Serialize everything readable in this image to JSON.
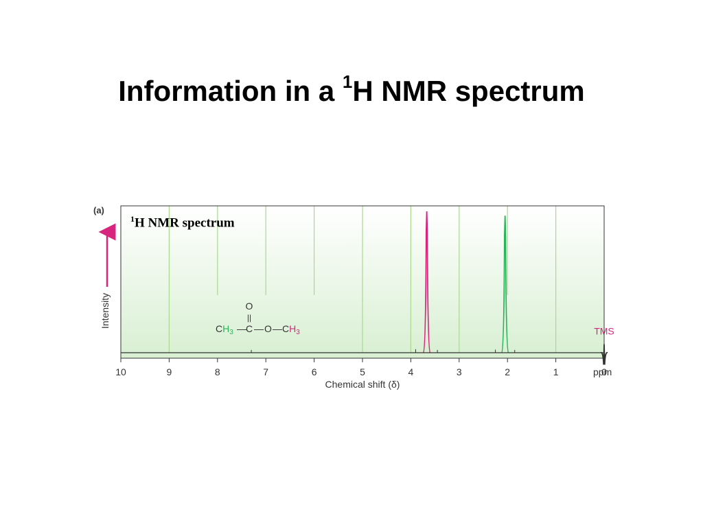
{
  "slide": {
    "title_prefix": "Information in a ",
    "title_sup": "1",
    "title_suffix": "H NMR spectrum"
  },
  "figure": {
    "panel_label": "(a)",
    "inset_sup": "1",
    "inset_text": "H NMR spectrum",
    "molecule": {
      "o_top": "O",
      "double_bond": "||",
      "ch3_left_c": "C",
      "ch3_left_h": "H",
      "ch3_left_sub": "3",
      "bond1": "—",
      "carbonyl_c": "C",
      "bond2": "—",
      "ether_o": "O",
      "bond3": "—",
      "ch3_right_c": "C",
      "ch3_right_h": "H",
      "ch3_right_sub": "3"
    }
  },
  "colors": {
    "background_top": "#ffffff",
    "background_bottom": "#d8efd2",
    "gridline": "#a9d98f",
    "peak_magenta": "#d6247f",
    "peak_green": "#2bb35a",
    "intensity_arrow": "#d6247f",
    "baseline": "#333333"
  },
  "chart_data": {
    "type": "line",
    "title": "",
    "xlabel": "Chemical shift (δ)",
    "ylabel": "Intensity",
    "x_unit": "ppm",
    "xlim": [
      10,
      0
    ],
    "x_reversed": true,
    "ylim": [
      0,
      1
    ],
    "grid": "vertical",
    "x_ticks": [
      10,
      9,
      8,
      7,
      6,
      5,
      4,
      3,
      2,
      1,
      0
    ],
    "peaks": [
      {
        "x": 3.67,
        "y": 0.99,
        "color": "#d6247f"
      },
      {
        "x": 2.05,
        "y": 0.96,
        "color": "#2bb35a"
      },
      {
        "x": 0.0,
        "y": 0.06,
        "color": "#333333",
        "label": "TMS",
        "label_color": "#d6247f"
      }
    ],
    "minor_peaks": [
      {
        "x": 7.3,
        "y": 0.01
      },
      {
        "x": 3.9,
        "y": 0.015
      },
      {
        "x": 3.45,
        "y": 0.01
      },
      {
        "x": 2.25,
        "y": 0.012
      },
      {
        "x": 1.85,
        "y": 0.01
      }
    ]
  }
}
